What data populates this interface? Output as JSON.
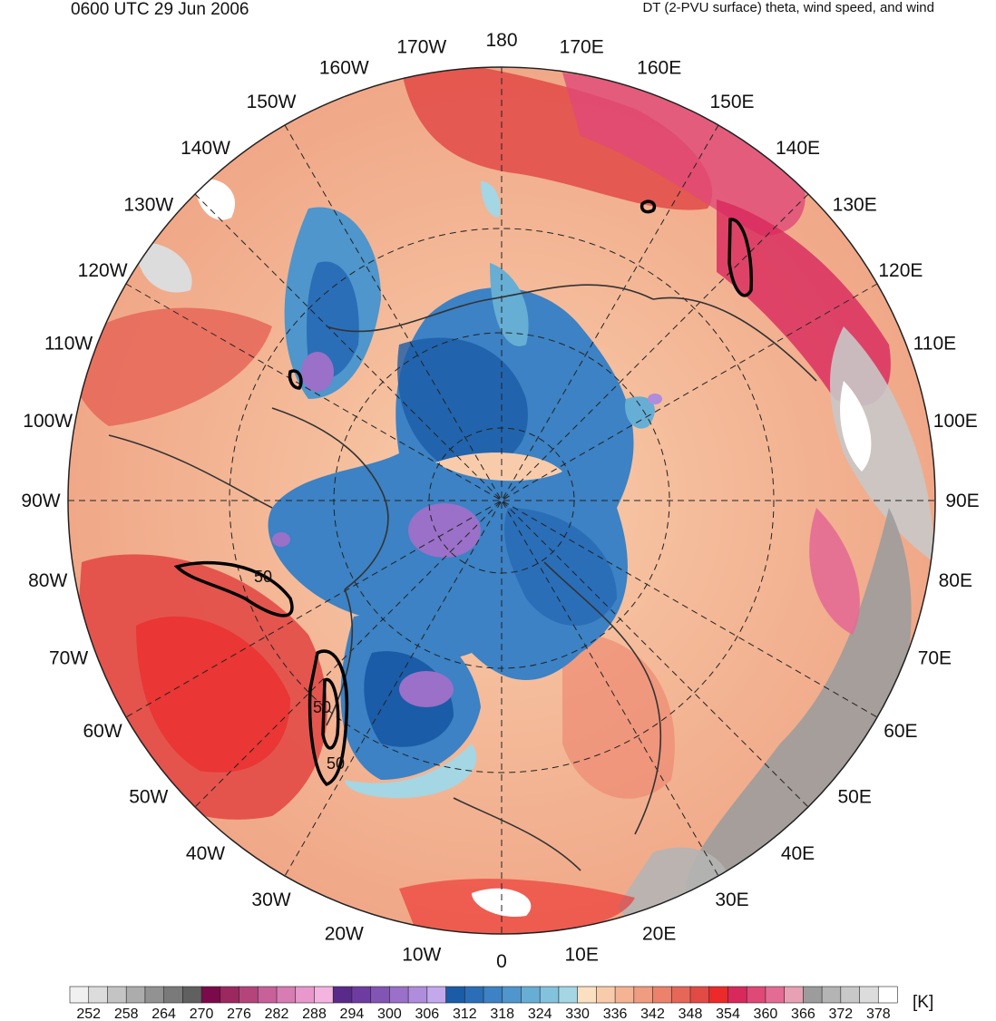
{
  "header": {
    "time_label": "0600 UTC 29 Jun 2006",
    "product_label": "DT (2-PVU surface) theta, wind speed, and wind"
  },
  "map": {
    "projection": "north-polar-stereographic",
    "longitude_labels": [
      "180",
      "170E",
      "160E",
      "150E",
      "140E",
      "130E",
      "120E",
      "110E",
      "100E",
      "90E",
      "80E",
      "70E",
      "60E",
      "50E",
      "40E",
      "30E",
      "20E",
      "10E",
      "0",
      "10W",
      "20W",
      "30W",
      "40W",
      "50W",
      "60W",
      "70W",
      "80W",
      "90W",
      "100W",
      "110W",
      "120W",
      "130W",
      "140W",
      "150W",
      "160W",
      "170W"
    ],
    "wind_speed_contour_labels": [
      "50",
      "50",
      "50"
    ]
  },
  "colorbar": {
    "units": "[K]",
    "tick_labels": [
      "252",
      "258",
      "264",
      "270",
      "276",
      "282",
      "288",
      "294",
      "300",
      "306",
      "312",
      "318",
      "324",
      "330",
      "336",
      "342",
      "348",
      "354",
      "360",
      "366",
      "372",
      "378"
    ],
    "colors": [
      "#f0f0f0",
      "#dcdcdc",
      "#c4c4c4",
      "#acacac",
      "#929292",
      "#7a7a7a",
      "#606060",
      "#7a0a4a",
      "#9c2860",
      "#b4447a",
      "#c8609a",
      "#d87cb4",
      "#e898cc",
      "#f4b4e0",
      "#5a2a8a",
      "#6e3ca0",
      "#8254b4",
      "#9a70c8",
      "#b08cdc",
      "#c4a8ec",
      "#1a5ca8",
      "#2a6eb8",
      "#3c82c4",
      "#4e96cc",
      "#66aed4",
      "#82c2dc",
      "#a4d6e4",
      "#fae0c0",
      "#f8ccaa",
      "#f4b494",
      "#f09c80",
      "#ec826c",
      "#e66658",
      "#e24a46",
      "#ec2a2a",
      "#d8285c",
      "#e04878",
      "#e46c94",
      "#e8a0b4",
      "#9c9c9c",
      "#b4b4b4",
      "#c8c8c8",
      "#dcdcdc",
      "#ffffff"
    ]
  }
}
